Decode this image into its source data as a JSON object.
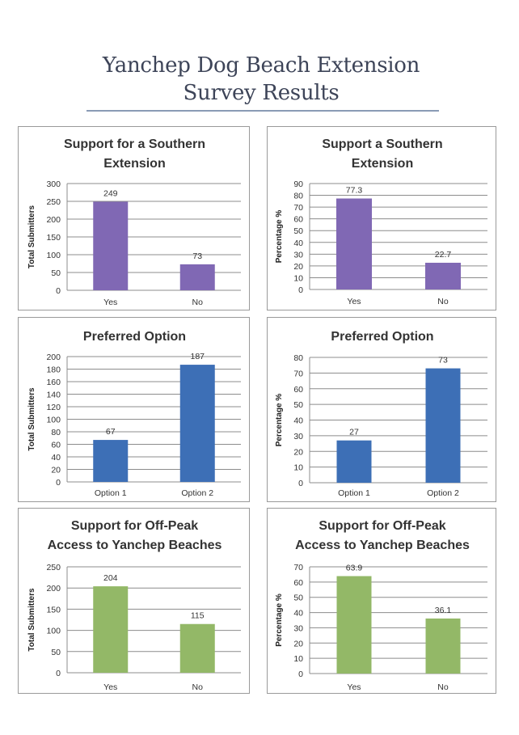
{
  "document": {
    "title_line1": "Yanchep Dog Beach Extension",
    "title_line2": "Survey Results",
    "rule_color": "#8a9bb5"
  },
  "chart_data": [
    {
      "type": "bar",
      "title": [
        "Support for a Southern",
        "Extension"
      ],
      "categories": [
        "Yes",
        "No"
      ],
      "values": [
        249,
        73
      ],
      "data_labels": [
        "249",
        "73"
      ],
      "xlabel": "",
      "ylabel": "Total Submitters",
      "ylim": [
        0,
        300
      ],
      "yticks": [
        0,
        50,
        100,
        150,
        200,
        250,
        300
      ],
      "grid": true,
      "legend": "none",
      "color": "#8068b4"
    },
    {
      "type": "bar",
      "title": [
        "Support a Southern",
        "Extension"
      ],
      "categories": [
        "Yes",
        "No"
      ],
      "values": [
        77.3,
        22.7
      ],
      "data_labels": [
        "77.3",
        "22.7"
      ],
      "xlabel": "",
      "ylabel": "Percentage %",
      "ylim": [
        0,
        90
      ],
      "yticks": [
        0,
        10,
        20,
        30,
        40,
        50,
        60,
        70,
        80,
        90
      ],
      "grid": true,
      "legend": "none",
      "color": "#8068b4"
    },
    {
      "type": "bar",
      "title": [
        "Preferred Option"
      ],
      "categories": [
        "Option 1",
        "Option 2"
      ],
      "values": [
        67,
        187
      ],
      "data_labels": [
        "67",
        "187"
      ],
      "xlabel": "",
      "ylabel": "Total Submitters",
      "ylim": [
        0,
        200
      ],
      "yticks": [
        0,
        20,
        40,
        60,
        80,
        100,
        120,
        140,
        160,
        180,
        200
      ],
      "grid": true,
      "legend": "none",
      "color": "#3d6fb6"
    },
    {
      "type": "bar",
      "title": [
        "Preferred Option"
      ],
      "categories": [
        "Option 1",
        "Option 2"
      ],
      "values": [
        27,
        73
      ],
      "data_labels": [
        "27",
        "73"
      ],
      "xlabel": "",
      "ylabel": "Percentage %",
      "ylim": [
        0,
        80
      ],
      "yticks": [
        0,
        10,
        20,
        30,
        40,
        50,
        60,
        70,
        80
      ],
      "grid": true,
      "legend": "none",
      "color": "#3d6fb6"
    },
    {
      "type": "bar",
      "title": [
        "Support for Off-Peak",
        "Access to Yanchep Beaches"
      ],
      "categories": [
        "Yes",
        "No"
      ],
      "values": [
        204,
        115
      ],
      "data_labels": [
        "204",
        "115"
      ],
      "xlabel": "",
      "ylabel": "Total Submitters",
      "ylim": [
        0,
        250
      ],
      "yticks": [
        0,
        50,
        100,
        150,
        200,
        250
      ],
      "grid": true,
      "legend": "none",
      "color": "#93b867"
    },
    {
      "type": "bar",
      "title": [
        "Support for Off-Peak",
        "Access to Yanchep Beaches"
      ],
      "categories": [
        "Yes",
        "No"
      ],
      "values": [
        63.9,
        36.1
      ],
      "data_labels": [
        "63.9",
        "36.1"
      ],
      "xlabel": "",
      "ylabel": "Percentage %",
      "ylim": [
        0,
        70
      ],
      "yticks": [
        0,
        10,
        20,
        30,
        40,
        50,
        60,
        70
      ],
      "grid": true,
      "legend": "none",
      "color": "#93b867"
    }
  ]
}
